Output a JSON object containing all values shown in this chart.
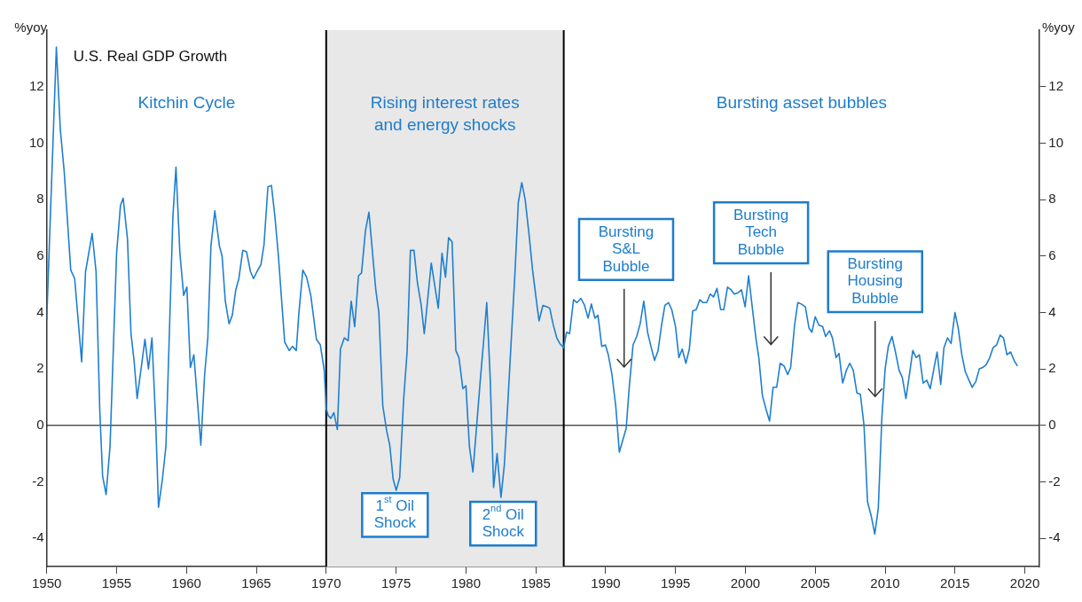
{
  "chart_data": {
    "type": "line",
    "title": "U.S. Real GDP Growth",
    "ylabel": "%yoy",
    "y2label": "%yoy",
    "xlim": [
      1950,
      2021
    ],
    "xticks": [
      1950,
      1955,
      1960,
      1965,
      1970,
      1975,
      1980,
      1985,
      1990,
      1995,
      2000,
      2005,
      2010,
      2015,
      2020
    ],
    "ylim": [
      -5,
      14
    ],
    "yticks": [
      -4,
      -2,
      0,
      2,
      4,
      6,
      8,
      10,
      12
    ],
    "y2lim": [
      -5,
      14
    ],
    "y2ticks": [
      -4,
      -2,
      0,
      2,
      4,
      6,
      8,
      10,
      12
    ],
    "legend": false,
    "marker": "none",
    "line_style": "solid",
    "series": [
      {
        "color": "#1f7fd0",
        "x": [
          1950.0,
          1950.69,
          1950.97,
          1951.25,
          1951.72,
          1952.0,
          1952.5,
          1952.78,
          1953.25,
          1953.53,
          1953.8,
          1954.0,
          1954.25,
          1954.53,
          1955.0,
          1955.28,
          1955.47,
          1955.78,
          1956.03,
          1956.25,
          1956.47,
          1957.03,
          1957.28,
          1957.53,
          1957.8,
          1958.0,
          1958.28,
          1958.53,
          1959.03,
          1959.25,
          1959.53,
          1959.8,
          1960.03,
          1960.28,
          1960.53,
          1961.03,
          1961.3,
          1961.53,
          1961.75,
          1962.03,
          1962.36,
          1962.55,
          1962.78,
          1963.05,
          1963.28,
          1963.53,
          1963.75,
          1964.03,
          1964.3,
          1964.58,
          1964.8,
          1965.05,
          1965.33,
          1965.55,
          1965.83,
          1966.08,
          1966.33,
          1966.58,
          1967.03,
          1967.36,
          1967.58,
          1967.86,
          1968.05,
          1968.33,
          1968.6,
          1968.9,
          1969.08,
          1969.3,
          1969.58,
          1969.86,
          1970.0,
          1970.14,
          1970.33,
          1970.55,
          1970.8,
          1971.02,
          1971.3,
          1971.57,
          1971.79,
          1972.04,
          1972.31,
          1972.53,
          1972.81,
          1973.06,
          1973.55,
          1973.77,
          1974.05,
          1974.33,
          1974.55,
          1974.79,
          1975.01,
          1975.26,
          1975.54,
          1975.79,
          1976.03,
          1976.28,
          1976.53,
          1976.8,
          1977.02,
          1977.52,
          1978.02,
          1978.29,
          1978.54,
          1978.76,
          1979.01,
          1979.28,
          1979.5,
          1979.78,
          1980.0,
          1980.25,
          1980.5,
          1980.77,
          1981.02,
          1981.27,
          1981.49,
          1981.74,
          1981.98,
          1982.23,
          1982.51,
          1982.75,
          1983.0,
          1983.28,
          1983.5,
          1983.75,
          1984.0,
          1984.24,
          1984.52,
          1984.77,
          1985.01,
          1985.23,
          1985.51,
          1985.79,
          1986.0,
          1986.23,
          1986.5,
          1986.72,
          1987.0,
          1987.2,
          1987.42,
          1987.7,
          1987.95,
          1988.23,
          1988.49,
          1988.74,
          1988.98,
          1989.23,
          1989.45,
          1989.72,
          1989.98,
          1990.19,
          1990.45,
          1990.72,
          1990.98,
          1991.47,
          1991.68,
          1991.96,
          1992.22,
          1992.47,
          1992.73,
          1993.0,
          1993.24,
          1993.5,
          1993.75,
          1994.0,
          1994.24,
          1994.5,
          1994.73,
          1995.0,
          1995.24,
          1995.48,
          1995.74,
          1995.99,
          1996.23,
          1996.48,
          1996.74,
          1996.97,
          1997.23,
          1997.48,
          1997.72,
          1997.97,
          1998.23,
          1998.46,
          1998.72,
          1998.98,
          1999.21,
          1999.47,
          1999.72,
          1999.98,
          2000.23,
          2000.49,
          2000.75,
          2000.96,
          2001.22,
          2001.49,
          2001.73,
          2001.98,
          2002.24,
          2002.49,
          2002.77,
          2003.03,
          2003.24,
          2003.52,
          2003.75,
          2004.0,
          2004.29,
          2004.55,
          2004.76,
          2005.0,
          2005.26,
          2005.53,
          2005.74,
          2006.02,
          2006.23,
          2006.49,
          2006.7,
          2006.96,
          2007.23,
          2007.47,
          2007.72,
          2007.98,
          2008.23,
          2008.49,
          2008.74,
          2009.0,
          2009.26,
          2009.51,
          2009.77,
          2010.0,
          2010.23,
          2010.49,
          2010.74,
          2011.0,
          2011.23,
          2011.49,
          2011.74,
          2011.98,
          2012.23,
          2012.45,
          2012.72,
          2012.98,
          2013.23,
          2013.47,
          2013.72,
          2013.98,
          2014.21,
          2014.47,
          2014.72,
          2015.0,
          2015.23,
          2015.49,
          2015.74,
          2016.0,
          2016.23,
          2016.49,
          2016.74,
          2016.98,
          2017.23,
          2017.49,
          2017.72,
          2017.98,
          2018.23,
          2018.47,
          2018.72,
          2018.98,
          2019.23,
          2019.47
        ],
        "values": [
          3.75,
          13.4,
          10.5,
          9.0,
          5.5,
          5.2,
          2.25,
          5.45,
          6.8,
          5.45,
          0.5,
          -1.8,
          -2.45,
          -0.75,
          6.1,
          7.8,
          8.05,
          6.6,
          3.25,
          2.3,
          0.95,
          3.05,
          2.0,
          3.1,
          0.1,
          -2.9,
          -1.9,
          -0.75,
          7.4,
          9.15,
          6.1,
          4.6,
          4.9,
          2.05,
          2.5,
          -0.7,
          1.8,
          3.1,
          6.35,
          7.6,
          6.35,
          6.0,
          4.4,
          3.6,
          3.9,
          4.8,
          5.2,
          6.2,
          6.15,
          5.45,
          5.2,
          5.45,
          5.7,
          6.4,
          8.45,
          8.5,
          7.4,
          6.0,
          2.95,
          2.65,
          2.8,
          2.65,
          4.0,
          5.5,
          5.25,
          4.6,
          3.9,
          3.05,
          2.85,
          1.95,
          0.6,
          0.35,
          0.25,
          0.45,
          -0.15,
          2.7,
          3.1,
          3.0,
          4.4,
          3.5,
          5.3,
          5.4,
          6.9,
          7.55,
          4.8,
          4.0,
          0.7,
          -0.2,
          -0.7,
          -1.9,
          -2.3,
          -1.85,
          0.9,
          2.6,
          6.2,
          6.2,
          5.05,
          4.25,
          3.25,
          5.75,
          4.15,
          6.1,
          5.25,
          6.65,
          6.5,
          2.65,
          2.4,
          1.3,
          1.4,
          -0.75,
          -1.65,
          0.0,
          1.55,
          3.0,
          4.35,
          1.65,
          -2.2,
          -1.0,
          -2.55,
          -1.4,
          0.8,
          3.35,
          5.3,
          7.9,
          8.6,
          8.0,
          6.75,
          5.5,
          4.55,
          3.7,
          4.25,
          4.2,
          4.15,
          3.6,
          3.1,
          2.9,
          2.75,
          3.3,
          3.25,
          4.45,
          4.35,
          4.5,
          4.25,
          3.8,
          4.3,
          3.8,
          3.9,
          2.8,
          2.85,
          2.5,
          1.8,
          0.7,
          -0.95,
          -0.1,
          1.3,
          2.85,
          3.15,
          3.6,
          4.4,
          3.3,
          2.8,
          2.3,
          2.65,
          3.55,
          4.25,
          4.35,
          4.1,
          3.5,
          2.4,
          2.7,
          2.2,
          2.7,
          4.05,
          4.1,
          4.45,
          4.35,
          4.35,
          4.65,
          4.55,
          4.85,
          4.1,
          4.1,
          4.9,
          4.8,
          4.65,
          4.7,
          4.8,
          4.2,
          5.3,
          4.2,
          3.1,
          2.4,
          1.05,
          0.55,
          0.15,
          1.35,
          1.35,
          2.2,
          2.1,
          1.8,
          2.05,
          3.55,
          4.35,
          4.3,
          4.2,
          3.45,
          3.3,
          3.85,
          3.55,
          3.5,
          3.15,
          3.35,
          3.1,
          2.4,
          2.55,
          1.5,
          1.95,
          2.2,
          1.95,
          1.15,
          1.1,
          0.0,
          -2.7,
          -3.2,
          -3.85,
          -2.95,
          0.3,
          2.0,
          2.8,
          3.15,
          2.6,
          1.95,
          1.7,
          0.95,
          1.8,
          2.65,
          2.4,
          2.5,
          1.5,
          1.6,
          1.3,
          1.95,
          2.6,
          1.45,
          2.75,
          3.1,
          2.9,
          4.0,
          3.45,
          2.5,
          1.9,
          1.6,
          1.35,
          1.55,
          2.0,
          2.05,
          2.15,
          2.4,
          2.75,
          2.85,
          3.2,
          3.1,
          2.5,
          2.6,
          2.3,
          2.1
        ]
      }
    ],
    "bands": [
      {
        "axis": "x",
        "from": 1970,
        "to": 1987,
        "label": "Rising interest rates and energy shocks",
        "color": "#e8e8e8"
      }
    ],
    "ref_lines": [
      {
        "axis": "y",
        "value": 0,
        "color": "#000000"
      },
      {
        "axis": "x",
        "value": 1970,
        "color": "#000000"
      },
      {
        "axis": "x",
        "value": 1987,
        "color": "#000000"
      }
    ],
    "annotations": [
      "Kitchin Cycle",
      "Bursting asset bubbles",
      "Bursting S&L Bubble",
      "Bursting Tech Bubble",
      "Bursting Housing Bubble",
      "1$^{st}$ Oil Shock",
      "2$^{nd}$ Oil Shock"
    ]
  }
}
